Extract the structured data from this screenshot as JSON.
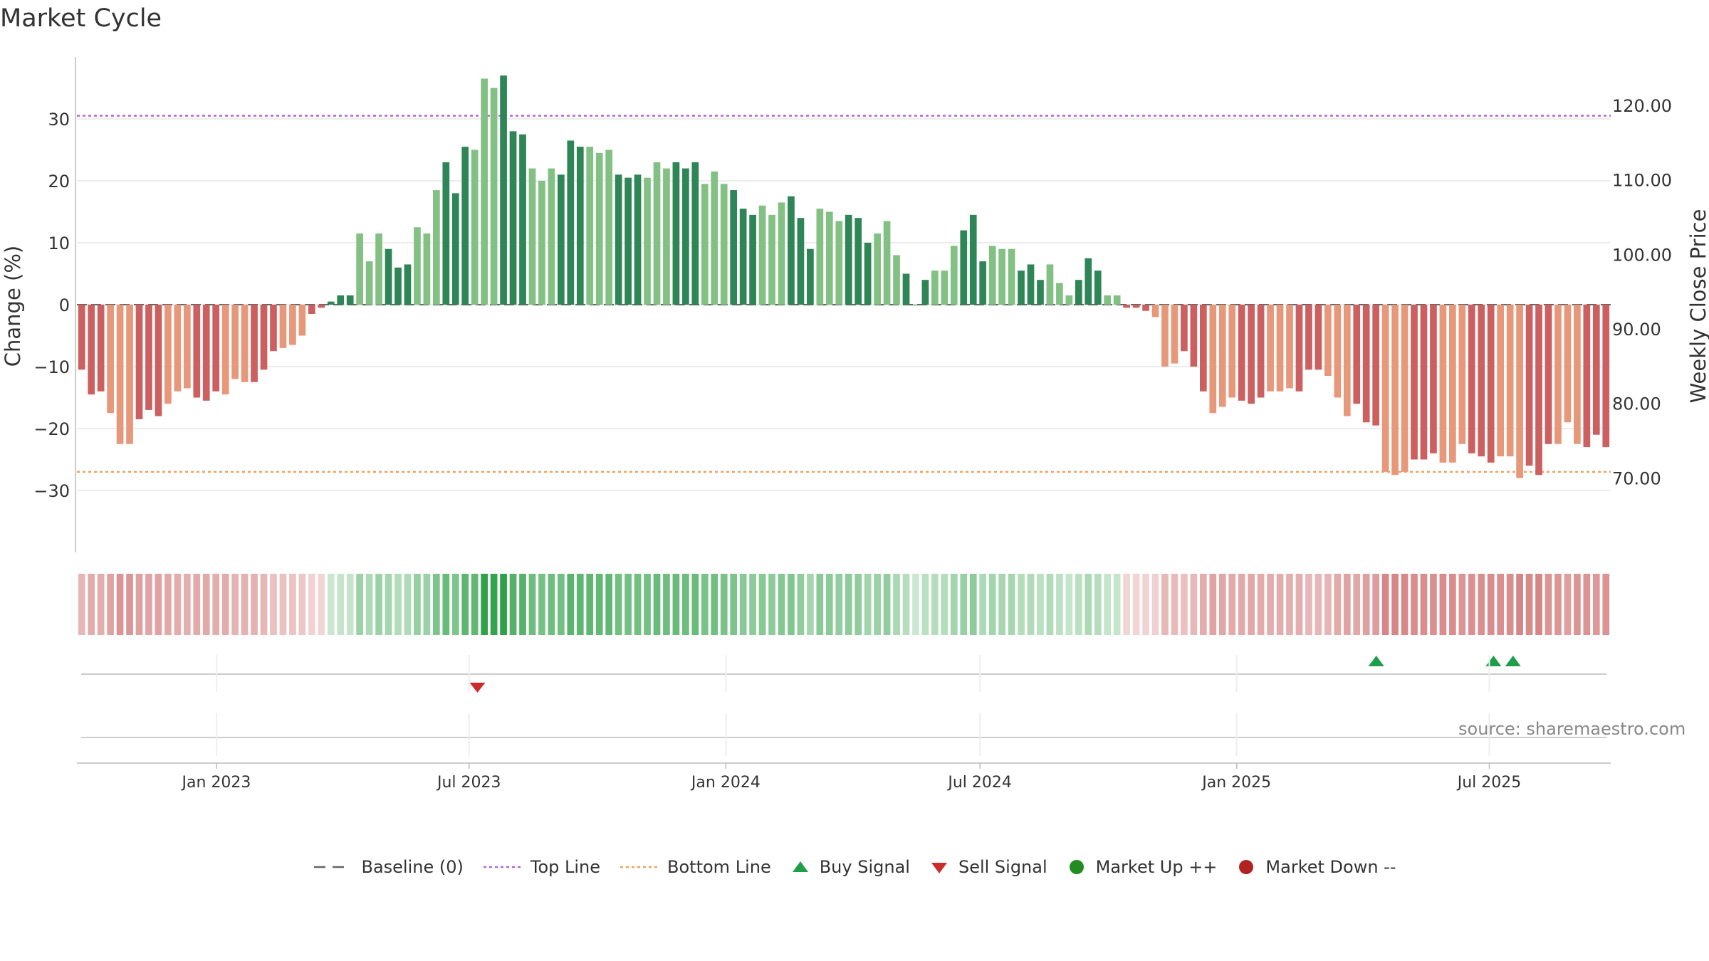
{
  "chart_data": {
    "type": "bar",
    "title": "Market Cycle",
    "ylabel_left": "Change (%)",
    "ylabel_right": "Weekly Close Price",
    "source": "source: sharemaestro.com",
    "x_ticks": [
      "Jan 2023",
      "Jul 2023",
      "Jan 2024",
      "Jul 2024",
      "Jan 2025",
      "Jul 2025"
    ],
    "x_tick_dates": [
      "2023-01-01",
      "2023-07-01",
      "2024-01-01",
      "2024-07-01",
      "2025-01-01",
      "2025-07-01"
    ],
    "x_start_date": "2022-09-23",
    "x_end_date": "2025-09-26",
    "left_axis": {
      "ylim": [
        -40,
        40
      ],
      "ticks": [
        -30,
        -20,
        -10,
        0,
        10,
        20,
        30
      ]
    },
    "right_axis": {
      "ylim": [
        60,
        126.5
      ],
      "ticks": [
        "70.00",
        "80.00",
        "90.00",
        "100.00",
        "110.00",
        "120.00"
      ],
      "tick_values": [
        70,
        80,
        90,
        100,
        110,
        120
      ]
    },
    "top_line": 30.5,
    "bottom_line": -27,
    "values": [
      -10.5,
      -14.5,
      -14,
      -17.5,
      -22.5,
      -22.5,
      -18.5,
      -17,
      -18,
      -16,
      -14,
      -13.5,
      -15,
      -15.5,
      -14,
      -14.5,
      -12,
      -12.5,
      -12.5,
      -10.5,
      -7.5,
      -7,
      -6.5,
      -5,
      -1.5,
      -0.5,
      0.5,
      1.5,
      1.5,
      11.5,
      7,
      11.5,
      9,
      6,
      6.5,
      12.5,
      11.5,
      18.5,
      23,
      18,
      25.5,
      25,
      36.5,
      35,
      37,
      28,
      27.5,
      22,
      20,
      22,
      21,
      26.5,
      25.5,
      25.5,
      24.5,
      25,
      21,
      20.5,
      21,
      20.5,
      23,
      22,
      23,
      22,
      23,
      19.5,
      21.5,
      19.5,
      18.5,
      15.5,
      14.5,
      16,
      14.5,
      16.5,
      17.5,
      14,
      9,
      15.5,
      15,
      13.5,
      14.5,
      14,
      10,
      11.5,
      13.5,
      8,
      5,
      0,
      4,
      5.5,
      5.5,
      9.5,
      12,
      14.5,
      7,
      9.5,
      9,
      9,
      5.5,
      6.5,
      4,
      6.5,
      3.5,
      1.5,
      4,
      7.5,
      5.5,
      1.5,
      1.5,
      -0.5,
      -0.5,
      -1,
      -2,
      -10,
      -9.5,
      -7.5,
      -10,
      -14,
      -17.5,
      -16.5,
      -15,
      -15.5,
      -16,
      -15,
      -14,
      -14,
      -13.5,
      -14,
      -10.5,
      -10.5,
      -11.5,
      -15,
      -18,
      -16,
      -19,
      -19.5,
      -27,
      -27.5,
      -27,
      -25,
      -25,
      -24,
      -25.5,
      -25.5,
      -22.5,
      -24,
      -24.5,
      -25.5,
      -24.5,
      -24.5,
      -28,
      -26,
      -27.5,
      -22.5,
      -22.5,
      -19,
      -22.5,
      -23,
      -21,
      -23
    ],
    "series_shading": {
      "dark_every_other_run": true
    },
    "signals": {
      "buy": [
        {
          "date": "2025-04-11"
        },
        {
          "date": "2025-07-04"
        },
        {
          "date": "2025-07-18"
        }
      ],
      "sell": [
        {
          "date": "2023-07-07"
        }
      ]
    },
    "colors": {
      "up_dark": "#2e8555",
      "up_light": "#83c083",
      "down_dark": "#cc5f5f",
      "down_light": "#e8987a",
      "top_line": "#b565d6",
      "bottom_line": "#f0a060",
      "baseline": "#666666",
      "buy": "#1e9e4a",
      "sell": "#cc2b2b",
      "market_up": "#228b22",
      "market_down": "#b22222",
      "grid": "#e6e6e6",
      "axis": "#bbbbbb"
    },
    "legend": [
      {
        "label": "Baseline (0)",
        "kind": "dash",
        "color": "#666666"
      },
      {
        "label": "Top Line",
        "kind": "dot",
        "color": "#b565d6"
      },
      {
        "label": "Bottom Line",
        "kind": "dot",
        "color": "#f0a060"
      },
      {
        "label": "Buy Signal",
        "kind": "tri-up",
        "color": "#1e9e4a"
      },
      {
        "label": "Sell Signal",
        "kind": "tri-down",
        "color": "#cc2b2b"
      },
      {
        "label": "Market Up ++",
        "kind": "circle",
        "color": "#228b22"
      },
      {
        "label": "Market Down --",
        "kind": "circle",
        "color": "#b22222"
      }
    ],
    "legend_position": "bottom"
  }
}
